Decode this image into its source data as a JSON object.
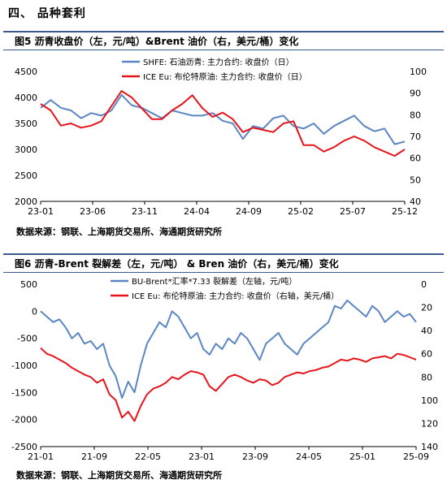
{
  "section_title": "四、  品种套利",
  "figures": [
    {
      "caption": "图5  沥青收盘价（左，元/吨）&Brent 油价（右，美元/桶）变化",
      "source": "数据来源：钢联、上海期货交易所、海通期货研究所"
    },
    {
      "caption": "图6  沥青-Brent 裂解差（左，元/吨）  & Bren 油价（右，美元/桶）变化",
      "source": "数据来源：钢联、上海期货交易所、海通期货研究所"
    }
  ],
  "chart_data": [
    {
      "type": "line",
      "x_ticks": [
        "23-01",
        "23-06",
        "23-11",
        "24-04",
        "24-09",
        "25-02",
        "25-07",
        "25-12"
      ],
      "y_left": {
        "ticks": [
          "2000",
          "2500",
          "3000",
          "3500",
          "4000",
          "4500"
        ],
        "range": [
          2000,
          4500
        ]
      },
      "y_right": {
        "ticks": [
          "40",
          "50",
          "60",
          "70",
          "80",
          "90",
          "100"
        ],
        "range": [
          40,
          100
        ]
      },
      "series": [
        {
          "name": "SHFE: 石油沥青: 主力合约: 收盘价（日）",
          "axis": "left",
          "color": "#5b86c3",
          "x": [
            0,
            1,
            2,
            3,
            4,
            5,
            6,
            7,
            8,
            9,
            10,
            11,
            12,
            13,
            14,
            15,
            16,
            17,
            18,
            19,
            20,
            21,
            22,
            23,
            24,
            25,
            26,
            27,
            28,
            29,
            30,
            31,
            32,
            33,
            34,
            35,
            36
          ],
          "values": [
            3800,
            3950,
            3800,
            3750,
            3600,
            3700,
            3650,
            3750,
            4050,
            3850,
            3800,
            3700,
            3600,
            3750,
            3700,
            3650,
            3650,
            3700,
            3550,
            3500,
            3200,
            3450,
            3400,
            3600,
            3650,
            3450,
            3400,
            3500,
            3300,
            3450,
            3550,
            3650,
            3450,
            3350,
            3400,
            3100,
            3150
          ]
        },
        {
          "name": "ICE Eu: 布伦特原油: 主力合约: 收盘价（日）",
          "axis": "right",
          "color": "#e8141b",
          "x": [
            0,
            1,
            2,
            3,
            4,
            5,
            6,
            7,
            8,
            9,
            10,
            11,
            12,
            13,
            14,
            15,
            16,
            17,
            18,
            19,
            20,
            21,
            22,
            23,
            24,
            25,
            26,
            27,
            28,
            29,
            30,
            31,
            32,
            33,
            34,
            35,
            36
          ],
          "values": [
            85,
            82,
            75,
            76,
            74,
            75,
            77,
            84,
            91,
            88,
            83,
            78,
            78,
            82,
            85,
            89,
            83,
            79,
            81,
            78,
            72,
            74,
            73,
            72,
            76,
            77,
            66,
            66,
            63,
            65,
            68,
            70,
            68,
            65,
            63,
            61,
            64
          ]
        }
      ]
    },
    {
      "type": "line",
      "x_ticks": [
        "21-01",
        "21-09",
        "22-05",
        "23-01",
        "23-09",
        "24-05",
        "25-01",
        "25-09"
      ],
      "y_left": {
        "ticks": [
          "-2500",
          "-2000",
          "-1500",
          "-1000",
          "-500",
          "0",
          "500"
        ],
        "range": [
          -2500,
          500
        ]
      },
      "y_right": {
        "ticks": [
          "0",
          "20",
          "40",
          "60",
          "80",
          "100",
          "120",
          "140"
        ],
        "range": [
          0,
          140
        ],
        "inverted": true
      },
      "series": [
        {
          "name": "BU-Brent*汇率*7.33 裂解差（左轴，元/吨）",
          "axis": "left",
          "color": "#5b86c3",
          "x": [
            0,
            1,
            2,
            3,
            4,
            5,
            6,
            7,
            8,
            9,
            10,
            11,
            12,
            13,
            14,
            15,
            16,
            17,
            18,
            19,
            20,
            21,
            22,
            23,
            24,
            25,
            26,
            27,
            28,
            29,
            30,
            31,
            32,
            33,
            34,
            35,
            36,
            37,
            38,
            39,
            40,
            41,
            42,
            43,
            44,
            45,
            46,
            47,
            48,
            49,
            50,
            51,
            52,
            53,
            54,
            55,
            56,
            57,
            58,
            59,
            60
          ],
          "values": [
            0,
            -100,
            -200,
            -150,
            -300,
            -500,
            -400,
            -600,
            -550,
            -700,
            -600,
            -1000,
            -1200,
            -1600,
            -1300,
            -1500,
            -1000,
            -600,
            -400,
            -200,
            -300,
            0,
            -100,
            -300,
            -500,
            -400,
            -700,
            -800,
            -600,
            -700,
            -500,
            -600,
            -400,
            -500,
            -700,
            -900,
            -600,
            -500,
            -400,
            -600,
            -700,
            -800,
            -600,
            -500,
            -400,
            -300,
            -200,
            100,
            50,
            200,
            100,
            0,
            -100,
            100,
            0,
            -200,
            -100,
            0,
            -100,
            -50,
            -200
          ]
        },
        {
          "name": "ICE Eu: 布伦特原油: 主力合约: 收盘价（右轴，美元/桶）",
          "axis": "right",
          "color": "#e8141b",
          "x": [
            0,
            1,
            2,
            3,
            4,
            5,
            6,
            7,
            8,
            9,
            10,
            11,
            12,
            13,
            14,
            15,
            16,
            17,
            18,
            19,
            20,
            21,
            22,
            23,
            24,
            25,
            26,
            27,
            28,
            29,
            30,
            31,
            32,
            33,
            34,
            35,
            36,
            37,
            38,
            39,
            40,
            41,
            42,
            43,
            44,
            45,
            46,
            47,
            48,
            49,
            50,
            51,
            52,
            53,
            54,
            55,
            56,
            57,
            58,
            59,
            60
          ],
          "values": [
            55,
            60,
            62,
            65,
            68,
            72,
            75,
            78,
            80,
            85,
            82,
            95,
            100,
            115,
            110,
            118,
            105,
            95,
            90,
            88,
            85,
            80,
            82,
            78,
            75,
            76,
            78,
            88,
            92,
            86,
            80,
            78,
            80,
            83,
            85,
            82,
            83,
            87,
            85,
            80,
            78,
            76,
            77,
            75,
            74,
            72,
            71,
            68,
            65,
            66,
            64,
            65,
            67,
            64,
            63,
            62,
            64,
            60,
            61,
            63,
            65
          ]
        }
      ]
    }
  ]
}
